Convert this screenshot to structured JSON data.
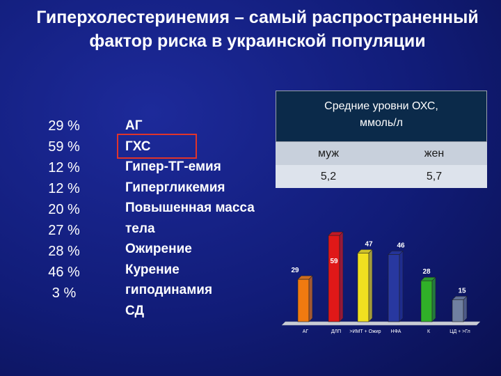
{
  "title": "Гиперхолестеринемия – самый распространенный фактор риска в украинской популяции",
  "percentages": [
    "29 %",
    "59 %",
    "12 %",
    "12 %",
    "20 %",
    "27 %",
    "28 %",
    "46 %",
    "3 %"
  ],
  "labels": [
    "АГ",
    "ГХС",
    "Гипер-ТГ-емия",
    "Гипергликемия",
    "Повышенная масса",
    "тела",
    "Ожирение",
    "Курение",
    "гиподинамия",
    "СД"
  ],
  "table": {
    "header_line1": "Средние уровни ОХС,",
    "header_line2": "ммоль/л",
    "col1": "муж",
    "col2": "жен",
    "val1": "5,2",
    "val2": "5,7"
  },
  "chart_data": {
    "type": "bar",
    "categories": [
      "АГ",
      "ДЛП",
      ">ИМТ + Ожир",
      "НФА",
      "К",
      "ЦД + >Гл"
    ],
    "values": [
      29,
      59,
      47,
      46,
      28,
      15
    ],
    "colors": [
      "#f07a10",
      "#e01818",
      "#f0e020",
      "#2838a0",
      "#30b028",
      "#7080a0"
    ],
    "ylim": [
      0,
      70
    ]
  }
}
